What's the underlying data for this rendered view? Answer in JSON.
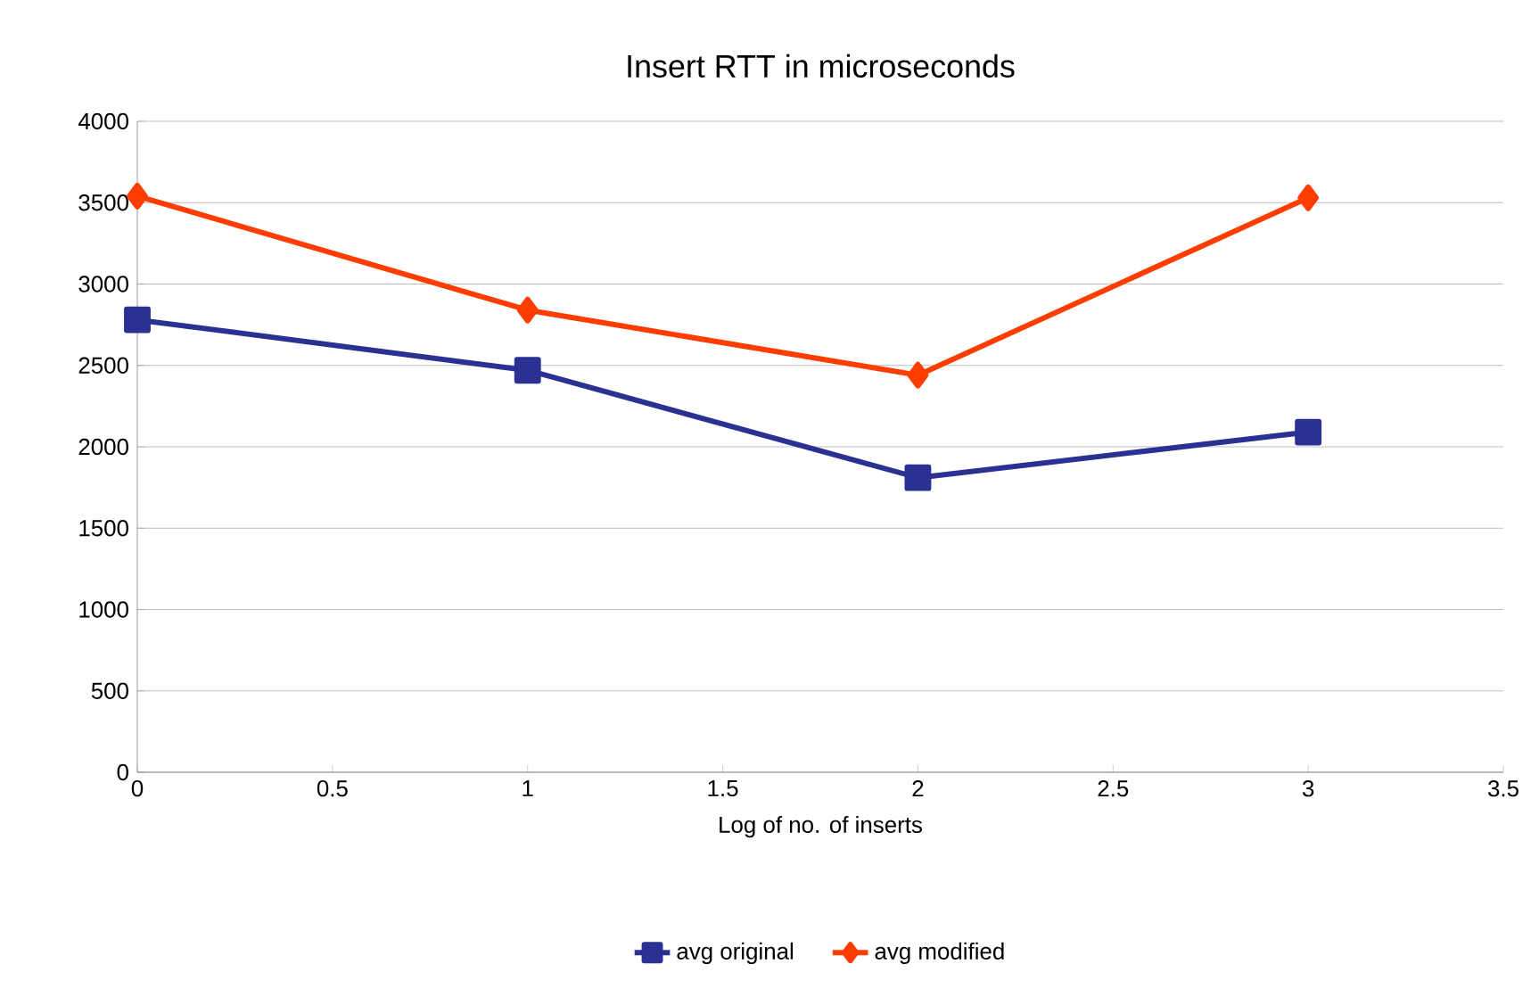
{
  "chart_data": {
    "type": "line",
    "title": "Insert RTT in microseconds",
    "xlabel": "Log of no. of inserts",
    "x": [
      0,
      1,
      2,
      3
    ],
    "series": [
      {
        "name": "avg original",
        "color": "#2b3192",
        "values": [
          2780,
          2470,
          1810,
          2090
        ],
        "marker": "square"
      },
      {
        "name": "avg modified",
        "color": "#ff3d00",
        "values": [
          3540,
          2840,
          2440,
          3530
        ],
        "marker": "diamond"
      }
    ],
    "xlim": [
      0,
      3.5
    ],
    "ylim": [
      0,
      4000
    ],
    "xticks": [
      0,
      0.5,
      1,
      1.5,
      2,
      2.5,
      3,
      3.5
    ],
    "yticks": [
      0,
      500,
      1000,
      1500,
      2000,
      2500,
      3000,
      3500,
      4000
    ],
    "grid": "y",
    "legend": "bottom",
    "line_style": "solid"
  }
}
